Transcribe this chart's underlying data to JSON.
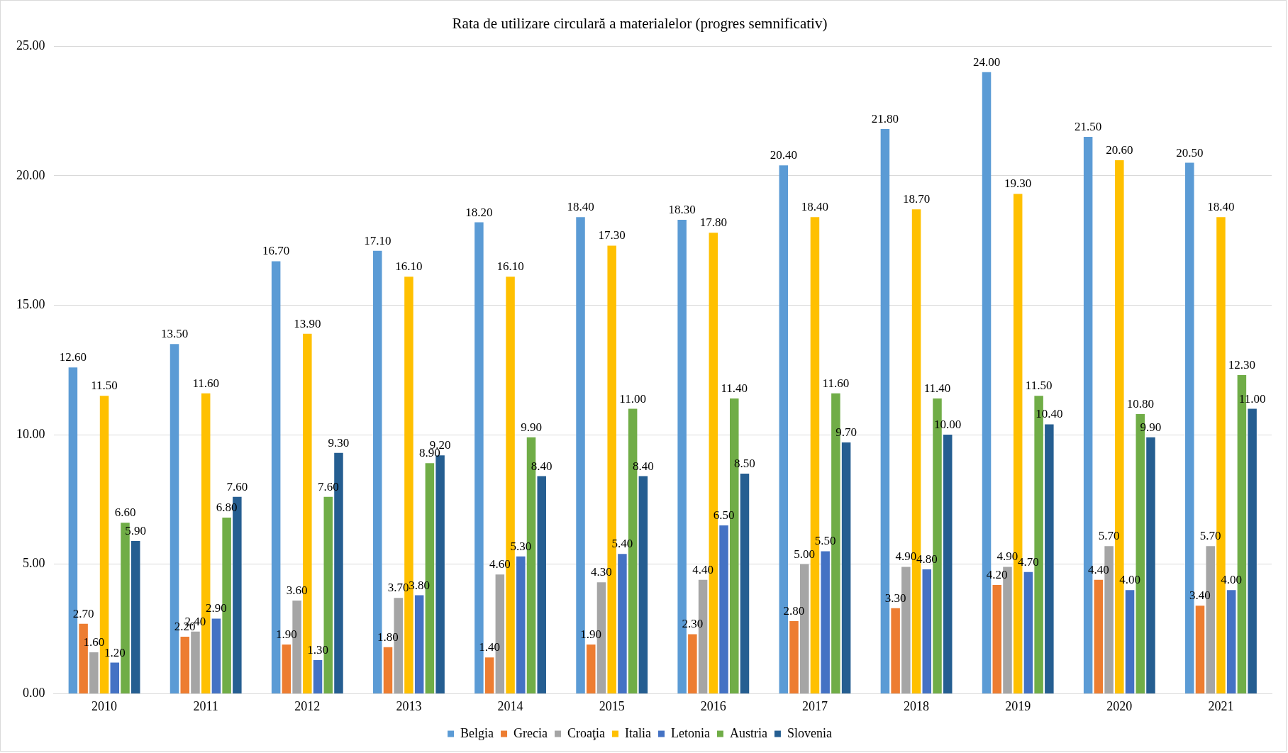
{
  "chart_data": {
    "type": "bar",
    "title": "Rata de utilizare circulară a materialelor (progres semnificativ)",
    "categories": [
      "2010",
      "2011",
      "2012",
      "2013",
      "2014",
      "2015",
      "2016",
      "2017",
      "2018",
      "2019",
      "2020",
      "2021"
    ],
    "series": [
      {
        "name": "Belgia",
        "color": "#5b9bd5",
        "values": [
          12.6,
          13.5,
          16.7,
          17.1,
          18.2,
          18.4,
          18.3,
          20.4,
          21.8,
          24.0,
          21.5,
          20.5
        ],
        "value_labels": [
          "12.60",
          "13.50",
          "16.70",
          "17.10",
          "18.20",
          "18.40",
          "18.30",
          "20.40",
          "21.80",
          "24.00",
          "21.50",
          "20.50"
        ]
      },
      {
        "name": "Grecia",
        "color": "#ed7d31",
        "values": [
          2.7,
          2.2,
          1.9,
          1.8,
          1.4,
          1.9,
          2.3,
          2.8,
          3.3,
          4.2,
          4.4,
          3.4
        ],
        "value_labels": [
          "2.70",
          "2.20",
          "1.90",
          "1.80",
          "1.40",
          "1.90",
          "2.30",
          "2.80",
          "3.30",
          "4.20",
          "4.40",
          "3.40"
        ]
      },
      {
        "name": "Croaţia",
        "color": "#a5a5a5",
        "values": [
          1.6,
          2.4,
          3.6,
          3.7,
          4.6,
          4.3,
          4.4,
          5.0,
          4.9,
          4.9,
          5.7,
          5.7
        ],
        "value_labels": [
          "1.60",
          "2.40",
          "3.60",
          "3.70",
          "4.60",
          "4.30",
          "4.40",
          "5.00",
          "4.90",
          "4.90",
          "5.70",
          "5.70"
        ]
      },
      {
        "name": "Italia",
        "color": "#ffc000",
        "values": [
          11.5,
          11.6,
          13.9,
          16.1,
          16.1,
          17.3,
          17.8,
          18.4,
          18.7,
          19.3,
          20.6,
          18.4
        ],
        "value_labels": [
          "11.50",
          "11.60",
          "13.90",
          "16.10",
          "16.10",
          "17.30",
          "17.80",
          "18.40",
          "18.70",
          "19.30",
          "20.60",
          "18.40"
        ]
      },
      {
        "name": "Letonia",
        "color": "#4472c4",
        "values": [
          1.2,
          2.9,
          1.3,
          3.8,
          5.3,
          5.4,
          6.5,
          5.5,
          4.8,
          4.7,
          4.0,
          4.0
        ],
        "value_labels": [
          "1.20",
          "2.90",
          "1.30",
          "3.80",
          "5.30",
          "5.40",
          "6.50",
          "5.50",
          "4.80",
          "4.70",
          "4.00",
          "4.00"
        ]
      },
      {
        "name": "Austria",
        "color": "#70ad47",
        "values": [
          6.6,
          6.8,
          7.6,
          8.9,
          9.9,
          11.0,
          11.4,
          11.6,
          11.4,
          11.5,
          10.8,
          12.3
        ],
        "value_labels": [
          "6.60",
          "6.80",
          "7.60",
          "8.90",
          "9.90",
          "11.00",
          "11.40",
          "11.60",
          "11.40",
          "11.50",
          "10.80",
          "12.30"
        ]
      },
      {
        "name": "Slovenia",
        "color": "#255e91",
        "values": [
          5.9,
          7.6,
          9.3,
          9.2,
          8.4,
          8.4,
          8.5,
          9.7,
          10.0,
          10.4,
          9.9,
          11.0
        ],
        "value_labels": [
          "5.90",
          "7.60",
          "9.30",
          "9.20",
          "8.40",
          "8.40",
          "8.50",
          "9.70",
          "10.00",
          "10.40",
          "9.90",
          "11.00"
        ]
      }
    ],
    "ylim": [
      0,
      25
    ],
    "yticks": [
      {
        "value": 0,
        "label": "0.00"
      },
      {
        "value": 5,
        "label": "5.00"
      },
      {
        "value": 10,
        "label": "10.00"
      },
      {
        "value": 15,
        "label": "15.00"
      },
      {
        "value": 20,
        "label": "20.00"
      },
      {
        "value": 25,
        "label": "25.00"
      }
    ],
    "grid": "y",
    "legend": "bottom"
  }
}
